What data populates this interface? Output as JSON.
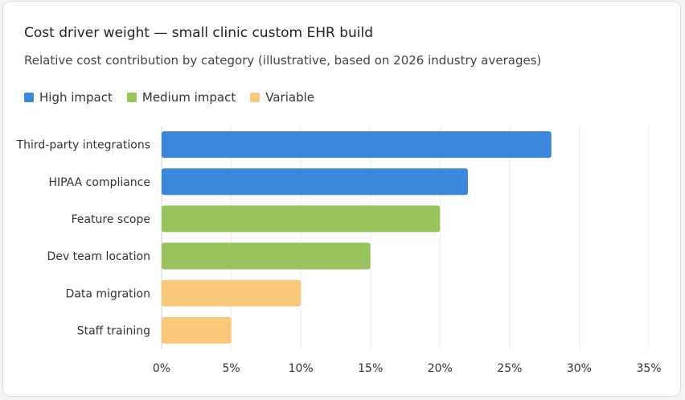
{
  "chart_data": {
    "type": "bar",
    "orientation": "horizontal",
    "title": "Cost driver weight — small clinic custom EHR build",
    "subtitle": "Relative cost contribution by category (illustrative, based on 2026 industry averages)",
    "legend_position": "top-left",
    "legend": [
      {
        "label": "High impact",
        "color": "#3a87dc"
      },
      {
        "label": "Medium impact",
        "color": "#97c45c"
      },
      {
        "label": "Variable",
        "color": "#f9c979"
      }
    ],
    "categories": [
      "Third-party integrations",
      "HIPAA compliance",
      "Feature scope",
      "Dev team location",
      "Data migration",
      "Staff training"
    ],
    "values": [
      28,
      22,
      20,
      15,
      10,
      5
    ],
    "groups": [
      0,
      0,
      1,
      1,
      2,
      2
    ],
    "xlim": [
      0,
      35
    ],
    "xticks": [
      0,
      5,
      10,
      15,
      20,
      25,
      30,
      35
    ],
    "tick_suffix": "%",
    "grid": true
  }
}
